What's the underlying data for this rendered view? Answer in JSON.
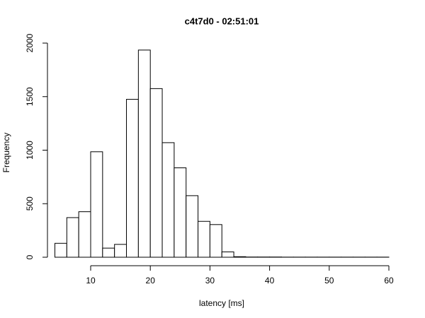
{
  "chart_data": {
    "type": "histogram",
    "title": "c4t7d0 - 02:51:01",
    "x_label": "latency [ms]",
    "y_label": "Frequency",
    "bins": [
      4,
      6,
      8,
      10,
      12,
      14,
      16,
      18,
      20,
      22,
      24,
      26,
      28,
      30,
      32,
      34,
      36,
      38,
      40,
      42,
      44,
      46,
      48,
      50,
      52,
      54,
      56,
      58,
      60
    ],
    "values": [
      130,
      370,
      425,
      985,
      85,
      120,
      1475,
      1935,
      1575,
      1070,
      835,
      575,
      335,
      305,
      50,
      5,
      2,
      2,
      2,
      1,
      1,
      1,
      1,
      1,
      1,
      1,
      1,
      1
    ],
    "color": "#ffffff",
    "xlim": [
      10,
      60
    ],
    "xticks": [
      10,
      20,
      30,
      40,
      50,
      60
    ],
    "ylim": [
      0,
      2000
    ],
    "yticks": [
      0,
      500,
      1000,
      1500,
      2000
    ]
  }
}
